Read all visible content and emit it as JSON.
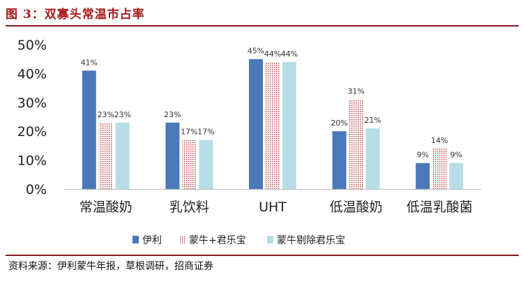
{
  "figure": {
    "title": "图 3：双寡头常温市占率",
    "source": "资料来源：伊利蒙牛年报，草根调研，招商证券"
  },
  "chart_data": {
    "type": "bar",
    "title": "",
    "xlabel": "",
    "ylabel": "",
    "categories": [
      "常温酸奶",
      "乳饮料",
      "UHT",
      "低温酸奶",
      "低温乳酸菌"
    ],
    "series": [
      {
        "name": "伊利",
        "values": [
          41,
          23,
          45,
          20,
          9
        ],
        "color": "#4a78b8",
        "pattern": "solid"
      },
      {
        "name": "蒙牛+君乐宝",
        "values": [
          23,
          17,
          44,
          31,
          14
        ],
        "color": "#c0392b",
        "pattern": "dotted"
      },
      {
        "name": "蒙牛剔除君乐宝",
        "values": [
          23,
          17,
          44,
          21,
          9
        ],
        "color": "#b7dde6",
        "pattern": "solid"
      }
    ],
    "ylim": [
      0,
      50
    ],
    "yticks": [
      "0%",
      "10%",
      "20%",
      "30%",
      "40%",
      "50%"
    ],
    "value_suffix": "%",
    "grid": false,
    "legend_position": "bottom"
  }
}
